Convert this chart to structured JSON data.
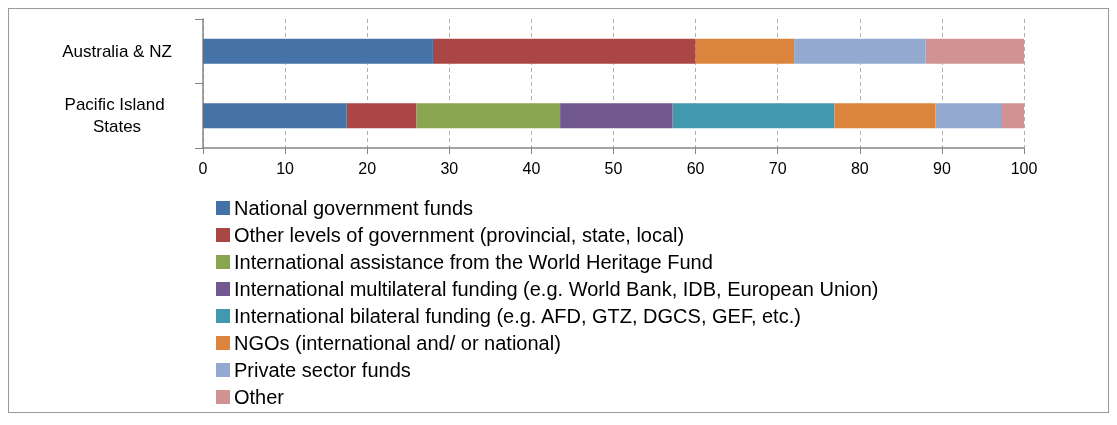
{
  "chart_data": {
    "type": "bar",
    "orientation": "horizontal",
    "stacked": true,
    "categories": [
      "Australia & NZ",
      "Pacific Island States"
    ],
    "series": [
      {
        "name": "National government funds",
        "color": "#4572a7",
        "values": [
          28,
          17.5
        ]
      },
      {
        "name": "Other levels of government (provincial, state, local)",
        "color": "#aa4643",
        "values": [
          32,
          8.5
        ]
      },
      {
        "name": "International assistance from the World Heritage Fund",
        "color": "#89a54e",
        "values": [
          null,
          17.5
        ]
      },
      {
        "name": "International multilateral funding (e.g. World Bank, IDB, European Union)",
        "color": "#71588f",
        "values": [
          null,
          13.7
        ]
      },
      {
        "name": "International bilateral funding (e.g. AFD, GTZ, DGCS, GEF, etc.)",
        "color": "#4198af",
        "values": [
          null,
          19.7
        ]
      },
      {
        "name": "NGOs (international and/ or national)",
        "color": "#db843d",
        "values": [
          12,
          12.3
        ]
      },
      {
        "name": "Private sector funds",
        "color": "#93a9cf",
        "values": [
          16,
          8
        ]
      },
      {
        "name": "Other",
        "color": "#d19392",
        "values": [
          12,
          2.8
        ]
      }
    ],
    "xlim": [
      0,
      100
    ],
    "xticks": [
      0,
      10,
      20,
      30,
      40,
      50,
      60,
      70,
      80,
      90,
      100
    ],
    "grid": "x",
    "legend": "bottom"
  }
}
